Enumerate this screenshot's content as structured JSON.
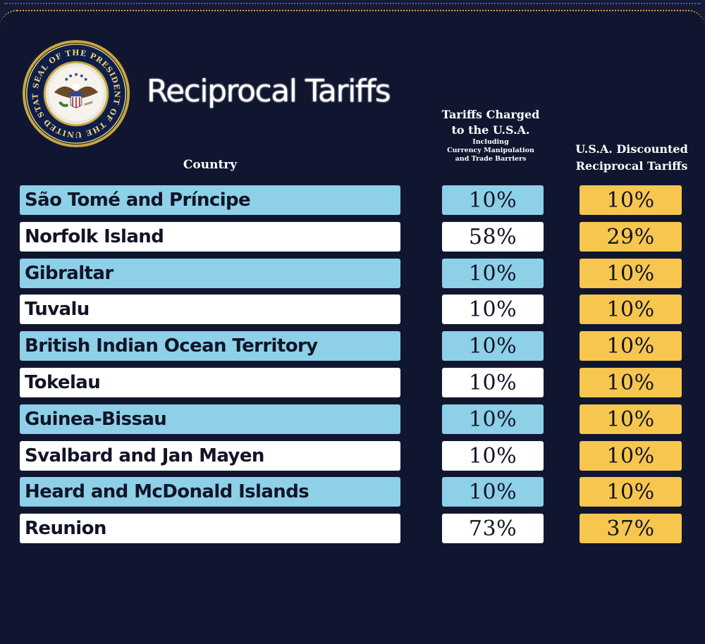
{
  "title": "Reciprocal Tariffs",
  "seal": {
    "text_top": "SEAL OF THE PRESIDENT OF THE UNITED STATES",
    "colors": {
      "ring": "#c9a73a",
      "field": "#0f1d4a",
      "inner": "#f3f0e4"
    }
  },
  "headers": {
    "country": "Country",
    "charged_main": "Tariffs Charged\nto the U.S.A.",
    "charged_sub": "Including\nCurrency Manipulation\nand Trade Barriers",
    "discounted": "U.S.A. Discounted\nReciprocal Tariffs"
  },
  "colors": {
    "background": "#111630",
    "row_blue": "#8dd0e8",
    "row_white": "#ffffff",
    "discount_gold": "#f7c64e",
    "text_dark": "#121426",
    "header_text": "#ffffff"
  },
  "chart_data": {
    "type": "table",
    "title": "Reciprocal Tariffs",
    "columns": [
      "Country",
      "Tariffs Charged to the U.S.A. Including Currency Manipulation and Trade Barriers",
      "U.S.A. Discounted Reciprocal Tariffs"
    ],
    "rows": [
      {
        "country": "São Tomé and Príncipe",
        "charged": "10%",
        "discounted": "10%",
        "charged_value": 10,
        "discounted_value": 10,
        "shade": "blue"
      },
      {
        "country": "Norfolk Island",
        "charged": "58%",
        "discounted": "29%",
        "charged_value": 58,
        "discounted_value": 29,
        "shade": "white"
      },
      {
        "country": "Gibraltar",
        "charged": "10%",
        "discounted": "10%",
        "charged_value": 10,
        "discounted_value": 10,
        "shade": "blue"
      },
      {
        "country": "Tuvalu",
        "charged": "10%",
        "discounted": "10%",
        "charged_value": 10,
        "discounted_value": 10,
        "shade": "white"
      },
      {
        "country": "British Indian Ocean Territory",
        "charged": "10%",
        "discounted": "10%",
        "charged_value": 10,
        "discounted_value": 10,
        "shade": "blue"
      },
      {
        "country": "Tokelau",
        "charged": "10%",
        "discounted": "10%",
        "charged_value": 10,
        "discounted_value": 10,
        "shade": "white"
      },
      {
        "country": "Guinea-Bissau",
        "charged": "10%",
        "discounted": "10%",
        "charged_value": 10,
        "discounted_value": 10,
        "shade": "blue"
      },
      {
        "country": "Svalbard and Jan Mayen",
        "charged": "10%",
        "discounted": "10%",
        "charged_value": 10,
        "discounted_value": 10,
        "shade": "white"
      },
      {
        "country": "Heard and McDonald Islands",
        "charged": "10%",
        "discounted": "10%",
        "charged_value": 10,
        "discounted_value": 10,
        "shade": "blue"
      },
      {
        "country": "Reunion",
        "charged": "73%",
        "discounted": "37%",
        "charged_value": 73,
        "discounted_value": 37,
        "shade": "white"
      }
    ]
  }
}
